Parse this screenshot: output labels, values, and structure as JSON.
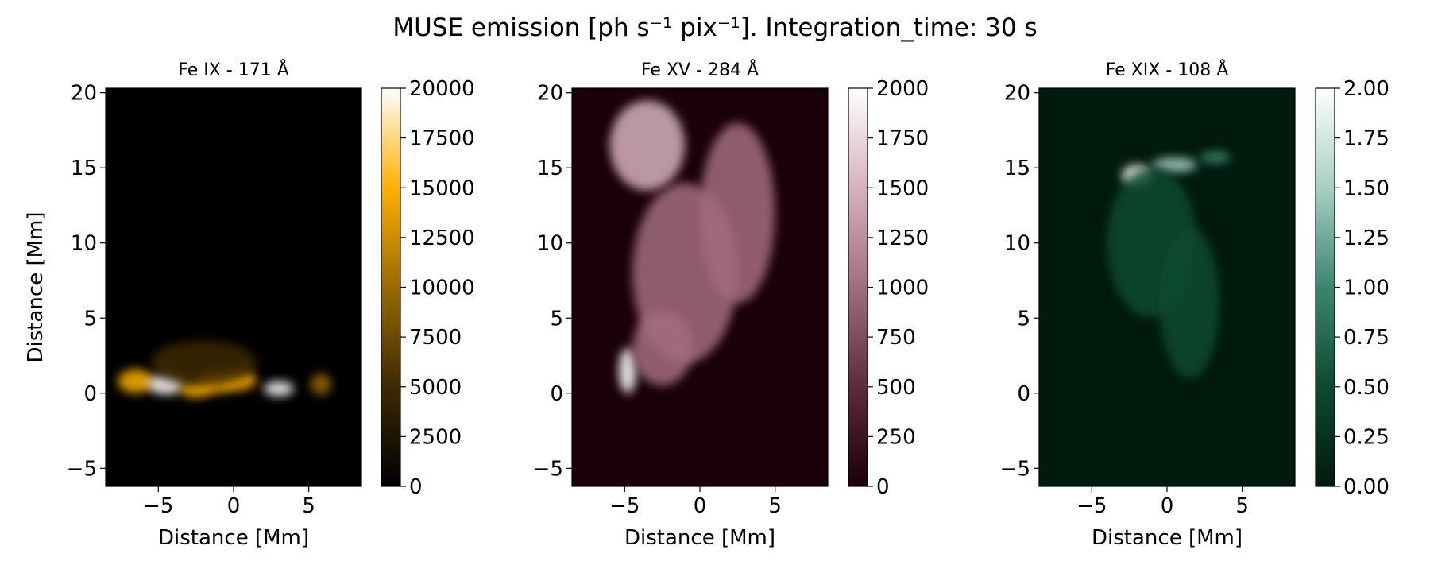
{
  "chart_data": {
    "title": "MUSE emission [ph s⁻¹ pix⁻¹]. Integration_time: 30 s",
    "panels": [
      {
        "type": "heatmap",
        "title": "Fe IX - 171 Å",
        "xlabel": "Distance [Mm]",
        "ylabel": "Distance [Mm]",
        "xlim": [
          -8.5,
          8.5
        ],
        "ylim": [
          -6.2,
          20.3
        ],
        "x_ticks": [
          {
            "v": -5,
            "label": "−5"
          },
          {
            "v": 0,
            "label": "0"
          },
          {
            "v": 5,
            "label": "5"
          }
        ],
        "y_ticks": [
          {
            "v": -5,
            "label": "−5"
          },
          {
            "v": 0,
            "label": "0"
          },
          {
            "v": 5,
            "label": "5"
          },
          {
            "v": 10,
            "label": "10"
          },
          {
            "v": 15,
            "label": "15"
          },
          {
            "v": 20,
            "label": "20"
          }
        ],
        "colormap": [
          "#000000",
          "#3d2a00",
          "#9a6a00",
          "#ffb000",
          "#ffffff"
        ],
        "clim": [
          0,
          20000
        ],
        "colorbar_ticks": [
          {
            "v": 0,
            "label": "0"
          },
          {
            "v": 2500,
            "label": "2500"
          },
          {
            "v": 5000,
            "label": "5000"
          },
          {
            "v": 7500,
            "label": "7500"
          },
          {
            "v": 10000,
            "label": "10000"
          },
          {
            "v": 12500,
            "label": "12500"
          },
          {
            "v": 15000,
            "label": "15000"
          },
          {
            "v": 17500,
            "label": "17500"
          },
          {
            "v": 20000,
            "label": "20000"
          }
        ],
        "emission_sources": [
          {
            "x": -6.5,
            "y": 0.8,
            "sx": 1.2,
            "sy": 0.8,
            "value": 15000
          },
          {
            "x": -4.5,
            "y": 0.6,
            "sx": 1.2,
            "sy": 0.7,
            "value": 18500
          },
          {
            "x": -2.5,
            "y": 0.3,
            "sx": 1.1,
            "sy": 0.6,
            "value": 16500
          },
          {
            "x": -1.0,
            "y": 0.7,
            "sx": 1.3,
            "sy": 0.7,
            "value": 14000
          },
          {
            "x": 0.5,
            "y": 0.9,
            "sx": 1.0,
            "sy": 0.7,
            "value": 12500
          },
          {
            "x": 3.0,
            "y": 0.3,
            "sx": 1.0,
            "sy": 0.5,
            "value": 17500
          },
          {
            "x": 5.8,
            "y": 0.6,
            "sx": 0.7,
            "sy": 0.7,
            "value": 11000
          },
          {
            "x": -2.0,
            "y": 2.0,
            "sx": 3.5,
            "sy": 1.5,
            "value": 3000
          }
        ]
      },
      {
        "type": "heatmap",
        "title": "Fe XV - 284 Å",
        "xlabel": "Distance [Mm]",
        "ylabel": "",
        "xlim": [
          -8.5,
          8.5
        ],
        "ylim": [
          -6.2,
          20.3
        ],
        "x_ticks": [
          {
            "v": -5,
            "label": "−5"
          },
          {
            "v": 0,
            "label": "0"
          },
          {
            "v": 5,
            "label": "5"
          }
        ],
        "y_ticks": [
          {
            "v": -5,
            "label": "−5"
          },
          {
            "v": 0,
            "label": "0"
          },
          {
            "v": 5,
            "label": "5"
          },
          {
            "v": 10,
            "label": "10"
          },
          {
            "v": 15,
            "label": "15"
          },
          {
            "v": 20,
            "label": "20"
          }
        ],
        "colormap": [
          "#1a0008",
          "#5e2a3c",
          "#a36d80",
          "#d6b2bd",
          "#ffffff"
        ],
        "clim": [
          0,
          2000
        ],
        "colorbar_ticks": [
          {
            "v": 0,
            "label": "0"
          },
          {
            "v": 250,
            "label": "250"
          },
          {
            "v": 500,
            "label": "500"
          },
          {
            "v": 750,
            "label": "750"
          },
          {
            "v": 1000,
            "label": "1000"
          },
          {
            "v": 1250,
            "label": "1250"
          },
          {
            "v": 1500,
            "label": "1500"
          },
          {
            "v": 1750,
            "label": "1750"
          },
          {
            "v": 2000,
            "label": "2000"
          }
        ],
        "emission_sources": [
          {
            "x": -4.8,
            "y": 1.5,
            "sx": 0.6,
            "sy": 1.5,
            "value": 1900
          },
          {
            "x": -3.5,
            "y": 16.5,
            "sx": 2.5,
            "sy": 3.0,
            "value": 1500
          },
          {
            "x": -1.0,
            "y": 8.0,
            "sx": 3.5,
            "sy": 6.0,
            "value": 1100
          },
          {
            "x": 2.5,
            "y": 12.0,
            "sx": 2.5,
            "sy": 6.0,
            "value": 1000
          },
          {
            "x": -2.5,
            "y": 3.0,
            "sx": 2.0,
            "sy": 2.5,
            "value": 1200
          }
        ]
      },
      {
        "type": "heatmap",
        "title": "Fe XIX - 108 Å",
        "xlabel": "Distance [Mm]",
        "ylabel": "",
        "xlim": [
          -8.5,
          8.5
        ],
        "ylim": [
          -6.2,
          20.3
        ],
        "x_ticks": [
          {
            "v": -5,
            "label": "−5"
          },
          {
            "v": 0,
            "label": "0"
          },
          {
            "v": 5,
            "label": "5"
          }
        ],
        "y_ticks": [
          {
            "v": -5,
            "label": "−5"
          },
          {
            "v": 0,
            "label": "0"
          },
          {
            "v": 5,
            "label": "5"
          },
          {
            "v": 10,
            "label": "10"
          },
          {
            "v": 15,
            "label": "15"
          },
          {
            "v": 20,
            "label": "20"
          }
        ],
        "colormap": [
          "#001a0d",
          "#0c4a30",
          "#3b8670",
          "#a6cfc4",
          "#ffffff"
        ],
        "clim": [
          0,
          2.0
        ],
        "colorbar_ticks": [
          {
            "v": 0,
            "label": "0.00"
          },
          {
            "v": 0.25,
            "label": "0.25"
          },
          {
            "v": 0.5,
            "label": "0.50"
          },
          {
            "v": 0.75,
            "label": "0.75"
          },
          {
            "v": 1.0,
            "label": "1.00"
          },
          {
            "v": 1.25,
            "label": "1.25"
          },
          {
            "v": 1.5,
            "label": "1.50"
          },
          {
            "v": 1.75,
            "label": "1.75"
          },
          {
            "v": 2.0,
            "label": "2.00"
          }
        ],
        "emission_sources": [
          {
            "x": -2.0,
            "y": 14.5,
            "sx": 1.0,
            "sy": 0.7,
            "value": 1.9
          },
          {
            "x": 0.5,
            "y": 15.2,
            "sx": 1.5,
            "sy": 0.5,
            "value": 1.5
          },
          {
            "x": 3.2,
            "y": 15.7,
            "sx": 1.0,
            "sy": 0.4,
            "value": 1.2
          },
          {
            "x": -1.0,
            "y": 10.0,
            "sx": 3.0,
            "sy": 5.0,
            "value": 0.55
          },
          {
            "x": 1.5,
            "y": 6.0,
            "sx": 2.0,
            "sy": 5.0,
            "value": 0.35
          }
        ]
      }
    ]
  }
}
